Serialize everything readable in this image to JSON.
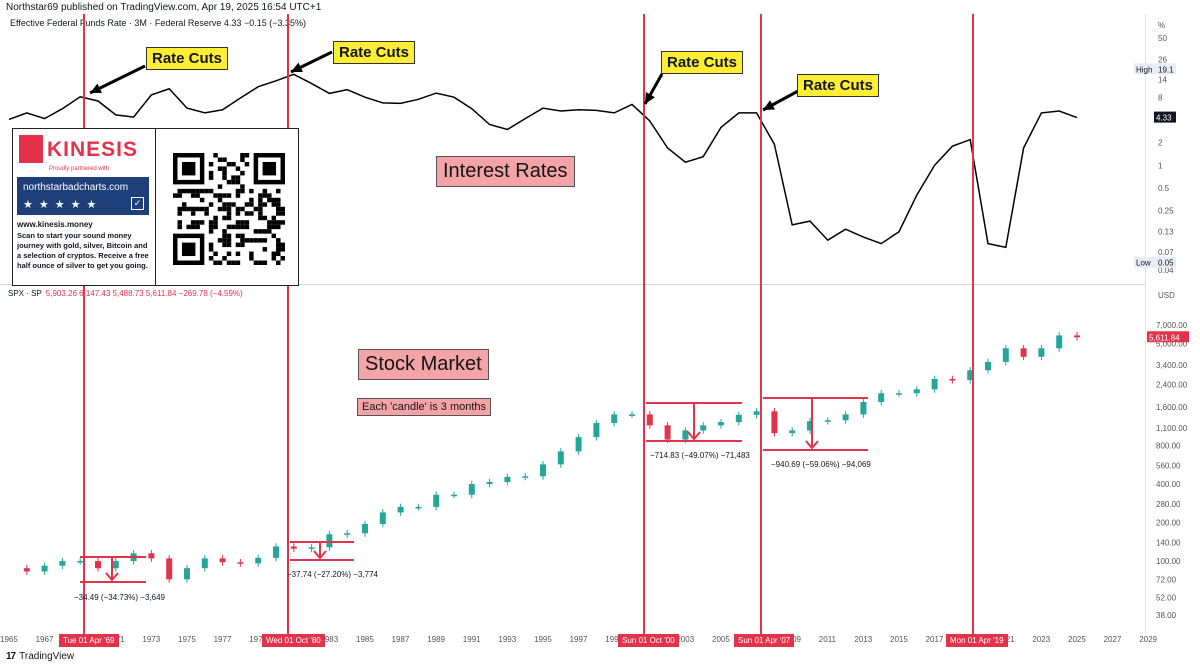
{
  "header": {
    "publisher": "Northstar69 published on TradingView.com, Apr 19, 2025 16:54 UTC+1"
  },
  "rate_pane": {
    "legend": "Effective Federal Funds Rate · 3M · Federal Reserve  4.33  −0.15 (−3.35%)",
    "axis_unit": "%",
    "axis_ticks": [
      "50",
      "26",
      "14",
      "8",
      "4",
      "2",
      "1",
      "0.5",
      "0.25",
      "0.13",
      "0.07",
      "0.04"
    ],
    "high_tag": {
      "label": "High",
      "value": "19.1"
    },
    "low_tag": {
      "label": "Low",
      "value": "0.05"
    },
    "last_value": "4.33",
    "title_label": "Interest Rates"
  },
  "spx_pane": {
    "symbol": "SPX · SP",
    "ohlc": "5,903.26  6,147.43  5,488.73  5,611.84  −269.78 (−4.59%)",
    "axis_unit": "USD",
    "axis_ticks": [
      "7,000.00",
      "5,000.00",
      "3,400.00",
      "2,400.00",
      "1,600.00",
      "1,100.00",
      "800.00",
      "560.00",
      "400.00",
      "280.00",
      "200.00",
      "140.00",
      "100.00",
      "72.00",
      "52.00",
      "38.00"
    ],
    "last_value": "5,611.84",
    "title_label": "Stock Market",
    "note": "Each 'candle' is 3 months"
  },
  "callouts": [
    "Rate Cuts",
    "Rate Cuts",
    "Rate Cuts",
    "Rate Cuts"
  ],
  "events": [
    {
      "date_label": "Tue 01 Apr '69",
      "drop_label": "−34.49 (−34.73%) −3,649"
    },
    {
      "date_label": "Wed 01 Oct '80",
      "drop_label": "−37.74 (−27.20%) −3,774"
    },
    {
      "date_label": "Sun 01 Oct '00",
      "drop_label": "−714.83 (−49.07%) −71,483"
    },
    {
      "date_label": "Sun 01 Apr '07",
      "drop_label": "−940.69 (−59.06%) −94,069"
    },
    {
      "date_label": "Mon 01 Apr '19",
      "drop_label": ""
    }
  ],
  "x_axis": {
    "labels": [
      "1965",
      "1967",
      "1969",
      "1971",
      "1973",
      "1975",
      "1977",
      "1979",
      "1981",
      "1983",
      "1985",
      "1987",
      "1989",
      "1991",
      "1993",
      "1995",
      "1997",
      "1999",
      "2001",
      "2003",
      "2005",
      "2007",
      "2009",
      "2011",
      "2013",
      "2015",
      "2017",
      "2019",
      "2021",
      "2023",
      "2025",
      "2027",
      "2029"
    ]
  },
  "ad": {
    "brand": "KINESIS",
    "partnered": "Proudly partnered with",
    "site": "northstarbadcharts.com",
    "stars": "★★★★★",
    "url": "www.kinesis.money",
    "description": "Scan to start your sound money journey with gold, silver, Bitcoin and a selection of cryptos. Receive a free half ounce of silver to get you going."
  },
  "footer": {
    "logo": "17",
    "brand": "TradingView"
  },
  "colors": {
    "event_line": "#e2334b",
    "candle_up": "#26a69a",
    "candle_down": "#e2334b",
    "callout_bg": "#ffee33",
    "label_bg": "#f4a3a7"
  },
  "chart_data": [
    {
      "type": "line",
      "title": "Effective Federal Funds Rate · 3M · Federal Reserve",
      "scale": "log",
      "ylim": [
        0.04,
        50
      ],
      "x": [
        1965,
        1966,
        1967,
        1968,
        1969,
        1970,
        1971,
        1972,
        1973,
        1974,
        1975,
        1976,
        1977,
        1978,
        1979,
        1980,
        1981,
        1982,
        1983,
        1984,
        1985,
        1986,
        1987,
        1988,
        1989,
        1990,
        1991,
        1992,
        1993,
        1994,
        1995,
        1996,
        1997,
        1998,
        1999,
        2000,
        2001,
        2002,
        2003,
        2004,
        2005,
        2006,
        2007,
        2008,
        2009,
        2010,
        2011,
        2012,
        2013,
        2014,
        2015,
        2016,
        2017,
        2018,
        2019,
        2020,
        2021,
        2022,
        2023,
        2024,
        2025
      ],
      "values": [
        4.1,
        5.0,
        4.2,
        5.7,
        8.2,
        7.2,
        4.7,
        4.4,
        8.7,
        10.5,
        5.8,
        5.0,
        5.5,
        7.9,
        11.2,
        13.4,
        16.4,
        12.3,
        9.1,
        10.2,
        8.1,
        6.8,
        6.7,
        7.6,
        9.2,
        8.1,
        5.7,
        3.5,
        3.0,
        4.2,
        5.8,
        5.3,
        5.5,
        5.4,
        5.0,
        6.5,
        3.9,
        1.7,
        1.1,
        1.3,
        3.2,
        5.0,
        5.0,
        1.9,
        0.16,
        0.18,
        0.1,
        0.14,
        0.11,
        0.09,
        0.13,
        0.4,
        1.0,
        1.8,
        2.2,
        0.09,
        0.08,
        1.7,
        5.0,
        5.3,
        4.33
      ],
      "annotations": [
        "High 19.1",
        "Low 0.05"
      ]
    },
    {
      "type": "candlestick",
      "title": "SPX · SP",
      "scale": "log",
      "ylim": [
        30,
        9000
      ],
      "x": [
        1965,
        1966,
        1967,
        1968,
        1969,
        1970,
        1971,
        1972,
        1973,
        1974,
        1975,
        1976,
        1977,
        1978,
        1979,
        1980,
        1981,
        1982,
        1983,
        1984,
        1985,
        1986,
        1987,
        1988,
        1989,
        1990,
        1991,
        1992,
        1993,
        1994,
        1995,
        1996,
        1997,
        1998,
        1999,
        2000,
        2001,
        2002,
        2003,
        2004,
        2005,
        2006,
        2007,
        2008,
        2009,
        2010,
        2011,
        2012,
        2013,
        2014,
        2015,
        2016,
        2017,
        2018,
        2019,
        2020,
        2021,
        2022,
        2023,
        2024,
        2025
      ],
      "values": [
        88,
        83,
        92,
        100,
        100,
        88,
        100,
        115,
        105,
        72,
        88,
        105,
        98,
        96,
        106,
        130,
        125,
        128,
        162,
        165,
        195,
        240,
        265,
        265,
        330,
        330,
        400,
        415,
        455,
        460,
        570,
        720,
        930,
        1200,
        1400,
        1400,
        1150,
        890,
        1050,
        1150,
        1220,
        1390,
        1480,
        1000,
        1050,
        1240,
        1260,
        1400,
        1750,
        2050,
        2050,
        2200,
        2650,
        2600,
        3100,
        3600,
        4600,
        3950,
        4600,
        5800,
        5611.84
      ]
    }
  ]
}
